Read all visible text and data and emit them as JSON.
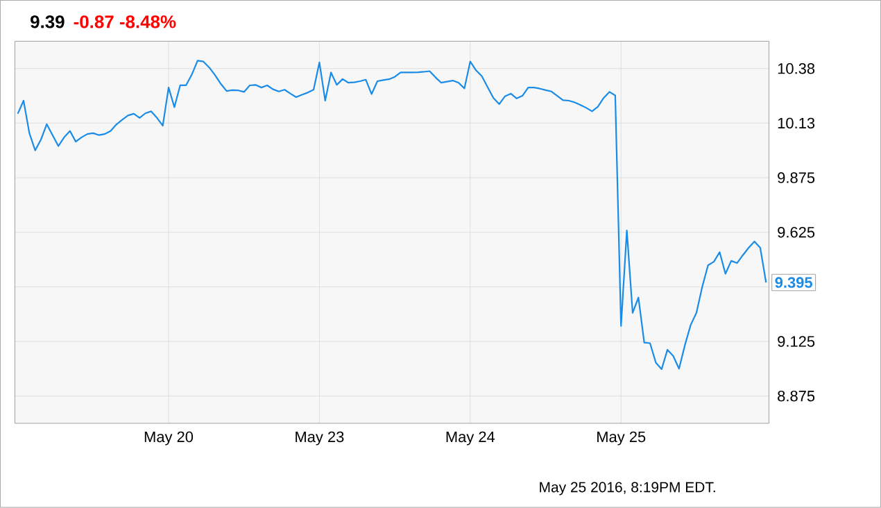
{
  "chart_data": {
    "type": "line",
    "title": "9.39",
    "subtitle": "-0.87  -8.48%",
    "categories": [
      null,
      null,
      null,
      null,
      null,
      null,
      null,
      null,
      null,
      null,
      null,
      null,
      null,
      null,
      null,
      null,
      null,
      null,
      null,
      null,
      null,
      null,
      null,
      null,
      null,
      null,
      "May 20",
      null,
      null,
      null,
      null,
      null,
      null,
      null,
      null,
      null,
      null,
      null,
      null,
      null,
      null,
      null,
      null,
      null,
      null,
      null,
      null,
      null,
      null,
      null,
      null,
      null,
      "May 23",
      null,
      null,
      null,
      null,
      null,
      null,
      null,
      null,
      null,
      null,
      null,
      null,
      null,
      null,
      null,
      null,
      null,
      null,
      null,
      null,
      null,
      null,
      null,
      null,
      null,
      "May 24",
      null,
      null,
      null,
      null,
      null,
      null,
      null,
      null,
      null,
      null,
      null,
      null,
      null,
      null,
      null,
      null,
      null,
      null,
      null,
      null,
      null,
      null,
      null,
      null,
      null,
      "May 25",
      null,
      null,
      null,
      null,
      null,
      null,
      null,
      null,
      null,
      null,
      null,
      null,
      null,
      null,
      null,
      null,
      null,
      null,
      null,
      null,
      null,
      null,
      null,
      null,
      null
    ],
    "series": [
      {
        "color": "#1a8be6",
        "values": [
          10.168,
          10.228,
          10.079,
          10.0,
          10.05,
          10.12,
          10.07,
          10.02,
          10.06,
          10.089,
          10.04,
          10.06,
          10.075,
          10.079,
          10.07,
          10.075,
          10.089,
          10.119,
          10.14,
          10.16,
          10.168,
          10.149,
          10.17,
          10.179,
          10.149,
          10.113,
          10.288,
          10.198,
          10.298,
          10.298,
          10.347,
          10.411,
          10.407,
          10.38,
          10.345,
          10.305,
          10.272,
          10.276,
          10.275,
          10.268,
          10.298,
          10.3,
          10.288,
          10.298,
          10.28,
          10.27,
          10.278,
          10.26,
          10.244,
          10.255,
          10.265,
          10.278,
          10.403,
          10.228,
          10.357,
          10.3,
          10.327,
          10.31,
          10.312,
          10.317,
          10.324,
          10.258,
          10.317,
          10.322,
          10.326,
          10.337,
          10.357,
          10.357,
          10.357,
          10.358,
          10.36,
          10.363,
          10.335,
          10.31,
          10.315,
          10.32,
          10.31,
          10.284,
          10.407,
          10.367,
          10.34,
          10.29,
          10.24,
          10.212,
          10.248,
          10.26,
          10.238,
          10.25,
          10.288,
          10.288,
          10.283,
          10.276,
          10.27,
          10.25,
          10.23,
          10.228,
          10.22,
          10.208,
          10.195,
          10.179,
          10.2,
          10.24,
          10.268,
          10.252,
          9.196,
          9.633,
          9.256,
          9.326,
          9.12,
          9.117,
          9.028,
          8.998,
          9.087,
          9.058,
          9.0,
          9.107,
          9.2,
          9.256,
          9.375,
          9.474,
          9.49,
          9.534,
          9.435,
          9.494,
          9.484,
          9.52,
          9.554,
          9.583,
          9.554,
          9.395
        ]
      }
    ],
    "ylim": [
      8.75,
      10.5
    ],
    "yticks": [
      {
        "value": 10.375,
        "label": "10.38"
      },
      {
        "value": 10.125,
        "label": "10.13"
      },
      9.875,
      9.625,
      {
        "value": 9.375,
        "label": null
      },
      9.125,
      8.875
    ],
    "grid": true,
    "annotations": [
      "May 25 2016, 8:19PM EDT.",
      {
        "text": "9.395",
        "y": 9.395
      }
    ]
  }
}
